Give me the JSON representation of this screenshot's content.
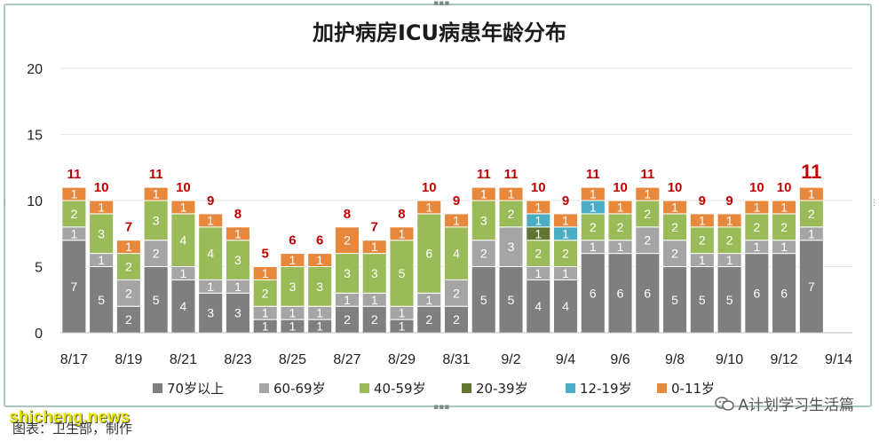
{
  "chart_data": {
    "type": "bar",
    "stacked": true,
    "title": "加护病房ICU病患年龄分布",
    "categories": [
      "8/17",
      "8/18",
      "8/19",
      "8/20",
      "8/21",
      "8/22",
      "8/23",
      "8/24",
      "8/25",
      "8/26",
      "8/27",
      "8/28",
      "8/29",
      "8/30",
      "8/31",
      "9/1",
      "9/2",
      "9/3",
      "9/4",
      "9/5",
      "9/6",
      "9/7",
      "9/8",
      "9/9",
      "9/10",
      "9/11",
      "9/12",
      "9/13",
      "9/14"
    ],
    "x_tick_labels": [
      "8/17",
      "8/19",
      "8/21",
      "8/23",
      "8/25",
      "8/27",
      "8/29",
      "8/31",
      "9/2",
      "9/4",
      "9/6",
      "9/8",
      "9/10",
      "9/12",
      "9/14"
    ],
    "ylim": [
      0,
      20
    ],
    "yticks": [
      0,
      5,
      10,
      15,
      20
    ],
    "grid": true,
    "legend_position": "bottom",
    "series": [
      {
        "name": "70岁以上",
        "color": "#7f7f7f",
        "values": [
          7,
          5,
          2,
          5,
          4,
          3,
          3,
          1,
          1,
          1,
          2,
          2,
          1,
          2,
          2,
          5,
          5,
          4,
          4,
          6,
          6,
          6,
          5,
          5,
          5,
          6,
          6,
          7,
          null
        ]
      },
      {
        "name": "60-69岁",
        "color": "#a5a5a5",
        "values": [
          1,
          1,
          2,
          2,
          1,
          1,
          1,
          1,
          1,
          1,
          1,
          1,
          1,
          1,
          2,
          2,
          3,
          1,
          1,
          1,
          1,
          2,
          2,
          1,
          1,
          1,
          1,
          1,
          null
        ]
      },
      {
        "name": "40-59岁",
        "color": "#9bbb59",
        "values": [
          2,
          3,
          2,
          3,
          4,
          4,
          3,
          2,
          3,
          3,
          3,
          3,
          5,
          6,
          4,
          3,
          2,
          2,
          2,
          2,
          2,
          2,
          2,
          2,
          2,
          2,
          2,
          2,
          null
        ]
      },
      {
        "name": "20-39岁",
        "color": "#5f7530",
        "values": [
          0,
          0,
          0,
          0,
          0,
          0,
          0,
          0,
          0,
          0,
          0,
          0,
          0,
          0,
          0,
          0,
          0,
          1,
          0,
          0,
          0,
          0,
          0,
          0,
          0,
          0,
          0,
          0,
          null
        ]
      },
      {
        "name": "12-19岁",
        "color": "#4bacc6",
        "values": [
          0,
          0,
          0,
          0,
          0,
          0,
          0,
          0,
          0,
          0,
          0,
          0,
          0,
          0,
          0,
          0,
          0,
          1,
          1,
          1,
          0,
          0,
          0,
          0,
          0,
          0,
          0,
          0,
          null
        ]
      },
      {
        "name": "0-11岁",
        "color": "#e8883c",
        "values": [
          1,
          1,
          1,
          1,
          1,
          1,
          1,
          1,
          1,
          1,
          2,
          1,
          1,
          1,
          1,
          1,
          1,
          1,
          1,
          1,
          1,
          1,
          1,
          1,
          1,
          1,
          1,
          1,
          null
        ]
      }
    ],
    "totals": [
      11,
      10,
      7,
      11,
      10,
      9,
      8,
      5,
      6,
      6,
      8,
      7,
      8,
      10,
      9,
      11,
      11,
      10,
      9,
      11,
      10,
      11,
      10,
      9,
      9,
      10,
      10,
      11,
      null
    ],
    "total_label_color": "#c00000"
  },
  "footer": {
    "watermark": "shicheng.news",
    "caption": "图表：卫生部，制作",
    "wechat_account": "A计划学习生活篇",
    "wechat_icon": "wechat-icon"
  }
}
